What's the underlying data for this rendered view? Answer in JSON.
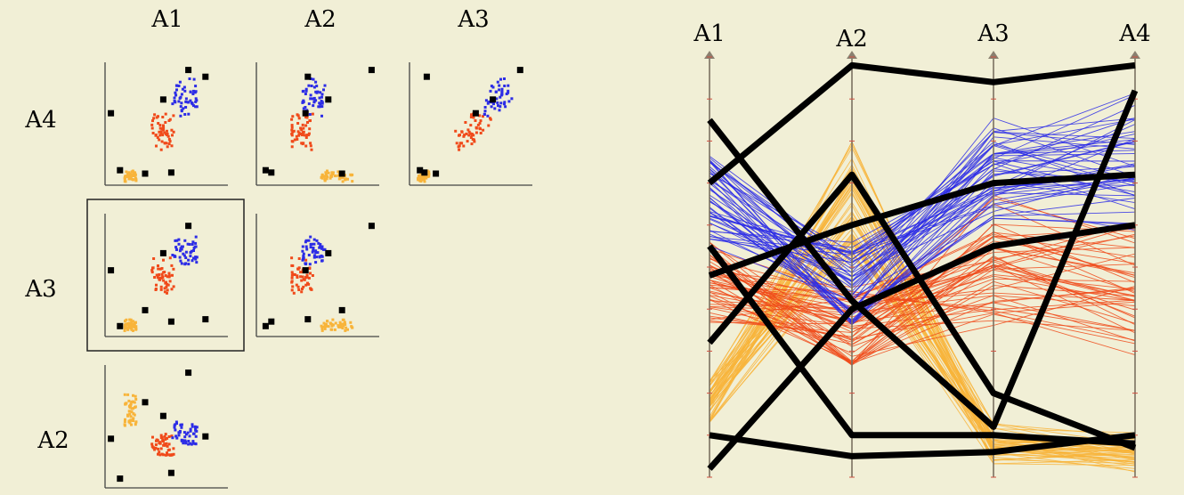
{
  "colors": {
    "background": "#f1efd6",
    "cluster_low": "#f8b43a",
    "cluster_mid": "#f04a1a",
    "cluster_high": "#2c2ce6",
    "highlight": "#000000",
    "axis": "#444444"
  },
  "chart_data": [
    {
      "type": "scatter",
      "layout": "scatterplot-matrix",
      "column_labels": [
        "A1",
        "A2",
        "A3"
      ],
      "row_labels": [
        "A4",
        "A3",
        "A2"
      ],
      "cells": [
        {
          "row": "A4",
          "col": "A1"
        },
        {
          "row": "A4",
          "col": "A2"
        },
        {
          "row": "A4",
          "col": "A3"
        },
        {
          "row": "A3",
          "col": "A1",
          "selected": true
        },
        {
          "row": "A3",
          "col": "A2"
        },
        {
          "row": "A2",
          "col": "A1"
        }
      ],
      "range": [
        0,
        1
      ],
      "clusters": [
        {
          "color_key": "cluster_low",
          "count": 50,
          "seed": 11,
          "center": [
            0.18,
            0.66,
            0.08,
            0.06
          ],
          "spread": [
            0.05,
            0.14,
            0.03,
            0.03
          ]
        },
        {
          "color_key": "cluster_mid",
          "count": 50,
          "seed": 23,
          "center": [
            0.46,
            0.36,
            0.52,
            0.45
          ],
          "spread": [
            0.1,
            0.1,
            0.09,
            0.09
          ]
        },
        {
          "color_key": "cluster_high",
          "count": 50,
          "seed": 37,
          "center": [
            0.66,
            0.46,
            0.74,
            0.74
          ],
          "spread": [
            0.11,
            0.1,
            0.09,
            0.1
          ]
        }
      ],
      "highlighted": [
        [
          0.7,
          0.98,
          0.94,
          0.98
        ],
        [
          0.55,
          0.1,
          0.1,
          0.08
        ],
        [
          0.85,
          0.42,
          0.12,
          0.92
        ],
        [
          0.1,
          0.05,
          0.06,
          0.1
        ],
        [
          0.32,
          0.72,
          0.2,
          0.07
        ],
        [
          0.02,
          0.4,
          0.55,
          0.6
        ],
        [
          0.48,
          0.6,
          0.7,
          0.72
        ]
      ]
    },
    {
      "type": "line",
      "layout": "parallel-coordinates",
      "axes": [
        "A1",
        "A2",
        "A3",
        "A4"
      ],
      "range": [
        0,
        1
      ],
      "uses_clusters_of": "scatterplot-matrix",
      "highlighted_polylines": [
        [
          0.7,
          0.98,
          0.94,
          0.98
        ],
        [
          0.55,
          0.1,
          0.1,
          0.08
        ],
        [
          0.85,
          0.42,
          0.12,
          0.92
        ],
        [
          0.1,
          0.05,
          0.06,
          0.1
        ],
        [
          0.32,
          0.72,
          0.2,
          0.07
        ],
        [
          0.02,
          0.4,
          0.55,
          0.6
        ],
        [
          0.48,
          0.6,
          0.7,
          0.72
        ]
      ]
    }
  ]
}
